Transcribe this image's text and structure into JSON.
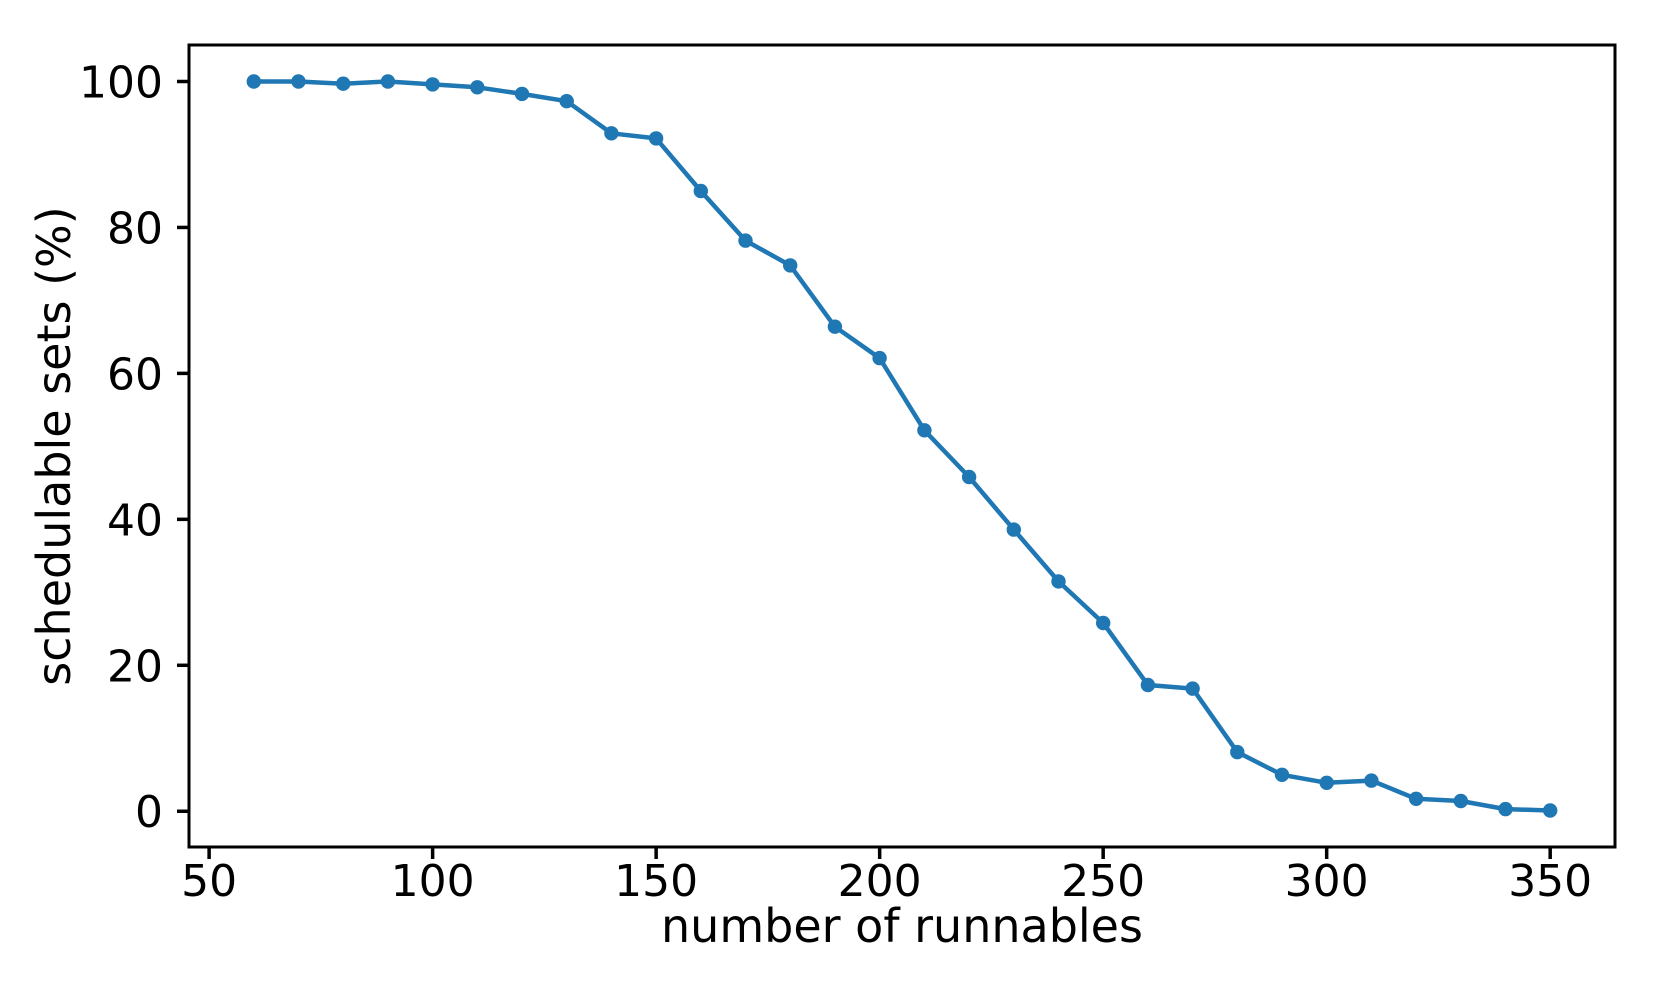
{
  "chart_data": {
    "type": "line",
    "title": "",
    "xlabel": "number of runnables",
    "ylabel": "schedulable sets (%)",
    "x": [
      60,
      70,
      80,
      90,
      100,
      110,
      120,
      130,
      140,
      150,
      160,
      170,
      180,
      190,
      200,
      210,
      220,
      230,
      240,
      250,
      260,
      270,
      280,
      290,
      300,
      310,
      320,
      330,
      340,
      350
    ],
    "y": [
      100,
      100,
      99.7,
      100,
      99.6,
      99.2,
      98.3,
      97.3,
      92.9,
      92.2,
      85.0,
      78.2,
      74.8,
      66.4,
      62.1,
      52.2,
      45.8,
      38.6,
      31.5,
      25.8,
      17.3,
      16.8,
      8.1,
      5.0,
      3.9,
      4.2,
      1.7,
      1.4,
      0.3,
      0.1
    ],
    "x_ticks": [
      50,
      100,
      150,
      200,
      250,
      300,
      350
    ],
    "y_ticks": [
      0,
      20,
      40,
      60,
      80,
      100
    ],
    "xlim": [
      45.5,
      364.5
    ],
    "ylim": [
      -4.9,
      105.0
    ],
    "grid": false,
    "legend": "none",
    "line_color": "#1f77b4",
    "marker_style": "filled-circle",
    "axis_color": "#000000"
  }
}
